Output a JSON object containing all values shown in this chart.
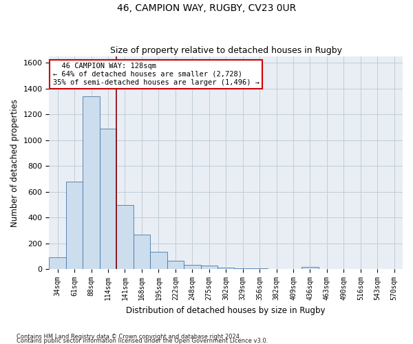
{
  "title1": "46, CAMPION WAY, RUGBY, CV23 0UR",
  "title2": "Size of property relative to detached houses in Rugby",
  "xlabel": "Distribution of detached houses by size in Rugby",
  "ylabel": "Number of detached properties",
  "categories": [
    "34sqm",
    "61sqm",
    "88sqm",
    "114sqm",
    "141sqm",
    "168sqm",
    "195sqm",
    "222sqm",
    "248sqm",
    "275sqm",
    "302sqm",
    "329sqm",
    "356sqm",
    "382sqm",
    "409sqm",
    "436sqm",
    "463sqm",
    "490sqm",
    "516sqm",
    "543sqm",
    "570sqm"
  ],
  "values": [
    90,
    680,
    1340,
    1090,
    500,
    270,
    135,
    65,
    35,
    30,
    10,
    5,
    5,
    3,
    2,
    15,
    2,
    1,
    1,
    0,
    0
  ],
  "bar_color": "#ccdded",
  "bar_edge_color": "#4477aa",
  "grid_color": "#c0ccd8",
  "vline_color": "#880000",
  "annotation_border_color": "#cc0000",
  "property_label": "46 CAMPION WAY: 128sqm",
  "smaller_pct": "64%",
  "smaller_count": "2,728",
  "larger_pct": "35%",
  "larger_count": "1,496",
  "vline_position": 3.5,
  "ylim": [
    0,
    1650
  ],
  "yticks": [
    0,
    200,
    400,
    600,
    800,
    1000,
    1200,
    1400,
    1600
  ],
  "footer1": "Contains HM Land Registry data © Crown copyright and database right 2024.",
  "footer2": "Contains public sector information licensed under the Open Government Licence v3.0.",
  "bg_color": "#ffffff",
  "plot_bg_color": "#e8eef4"
}
